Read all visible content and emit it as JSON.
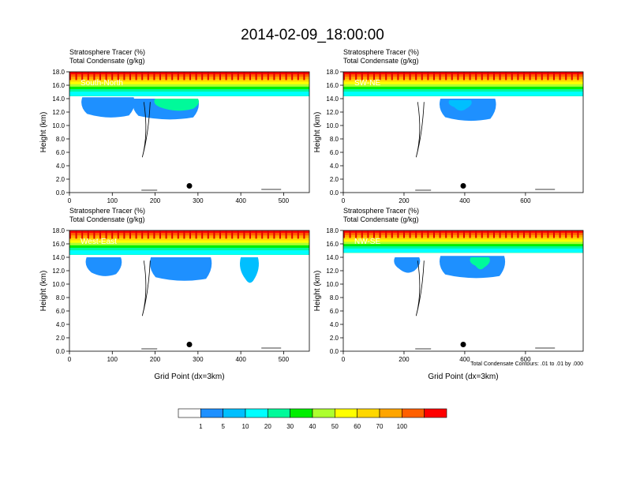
{
  "figure": {
    "title": "2014-02-09_18:00:00",
    "note": "Total Condensate Contours: .01 to .01 by .000"
  },
  "colorbar": {
    "levels": [
      "1",
      "5",
      "10",
      "20",
      "30",
      "40",
      "50",
      "60",
      "70",
      "100"
    ],
    "colors": [
      "#ffffff",
      "#1e90ff",
      "#00bfff",
      "#00ffff",
      "#00fa9a",
      "#00ee00",
      "#adff2f",
      "#ffff00",
      "#ffd700",
      "#ffa500",
      "#ff6000",
      "#ff0000"
    ]
  },
  "chart_data": [
    {
      "type": "heatmap",
      "panel_label": "South-North",
      "subtitle_1": "Stratosphere Tracer   (%)",
      "subtitle_2": "Total Condensate   (g/kg)",
      "xlabel": "",
      "ylabel": "Height (km)",
      "xlim": [
        0,
        560
      ],
      "ylim": [
        0,
        18
      ],
      "x_ticks": [
        "0",
        "100",
        "200",
        "300",
        "400",
        "500"
      ],
      "x_tick_values": [
        0,
        100,
        200,
        300,
        400,
        500
      ],
      "y_ticks": [
        "0.0",
        "2.0",
        "4.0",
        "6.0",
        "8.0",
        "10.0",
        "12.0",
        "14.0",
        "16.0",
        "18.0"
      ],
      "marker": {
        "x": 280,
        "y": 1.0
      },
      "tracer_base_km": 14.5,
      "blobs": [
        {
          "x0": 30,
          "x1": 150,
          "ytop": 14.2,
          "ybot": 11.5,
          "color": "#1e90ff"
        },
        {
          "x0": 150,
          "x1": 300,
          "ytop": 14.0,
          "ybot": 11.2,
          "color": "#1e90ff"
        },
        {
          "x0": 200,
          "x1": 300,
          "ytop": 14.0,
          "ybot": 12.5,
          "color": "#00fa9a"
        }
      ]
    },
    {
      "type": "heatmap",
      "panel_label": "SW-NE",
      "subtitle_1": "Stratosphere Tracer   (%)",
      "subtitle_2": "Total Condensate   (g/kg)",
      "xlabel": "",
      "ylabel": "Height (km)",
      "xlim": [
        0,
        790
      ],
      "ylim": [
        0,
        18
      ],
      "x_ticks": [
        "0",
        "200",
        "400",
        "600"
      ],
      "x_tick_values": [
        0,
        200,
        400,
        600
      ],
      "y_ticks": [
        "0.0",
        "2.0",
        "4.0",
        "6.0",
        "8.0",
        "10.0",
        "12.0",
        "14.0",
        "16.0",
        "18.0"
      ],
      "marker": {
        "x": 395,
        "y": 1.0
      },
      "tracer_base_km": 14.5,
      "blobs": [
        {
          "x0": 320,
          "x1": 500,
          "ytop": 14.0,
          "ybot": 11.0,
          "color": "#1e90ff"
        },
        {
          "x0": 350,
          "x1": 420,
          "ytop": 13.8,
          "ybot": 12.5,
          "color": "#00bfff"
        }
      ]
    },
    {
      "type": "heatmap",
      "panel_label": "West-East",
      "subtitle_1": "Stratosphere Tracer   (%)",
      "subtitle_2": "Total Condensate   (g/kg)",
      "xlabel": "Grid Point (dx=3km)",
      "ylabel": "Height (km)",
      "xlim": [
        0,
        560
      ],
      "ylim": [
        0,
        18
      ],
      "x_ticks": [
        "0",
        "100",
        "200",
        "300",
        "400",
        "500"
      ],
      "x_tick_values": [
        0,
        100,
        200,
        300,
        400,
        500
      ],
      "y_ticks": [
        "0.0",
        "2.0",
        "4.0",
        "6.0",
        "8.0",
        "10.0",
        "12.0",
        "14.0",
        "16.0",
        "18.0"
      ],
      "marker": {
        "x": 280,
        "y": 1.0
      },
      "tracer_base_km": 14.5,
      "blobs": [
        {
          "x0": 40,
          "x1": 120,
          "ytop": 14.0,
          "ybot": 11.5,
          "color": "#1e90ff"
        },
        {
          "x0": 190,
          "x1": 330,
          "ytop": 14.0,
          "ybot": 10.8,
          "color": "#1e90ff"
        },
        {
          "x0": 400,
          "x1": 440,
          "ytop": 14.0,
          "ybot": 10.5,
          "color": "#00bfff"
        }
      ]
    },
    {
      "type": "heatmap",
      "panel_label": "NW-SE",
      "subtitle_1": "Stratosphere Tracer   (%)",
      "subtitle_2": "Total Condensate   (g/kg)",
      "xlabel": "Grid Point (dx=3km)",
      "ylabel": "Height (km)",
      "xlim": [
        0,
        790
      ],
      "ylim": [
        0,
        18
      ],
      "x_ticks": [
        "0",
        "200",
        "400",
        "600"
      ],
      "x_tick_values": [
        0,
        200,
        400,
        600
      ],
      "y_ticks": [
        "0.0",
        "2.0",
        "4.0",
        "6.0",
        "8.0",
        "10.0",
        "12.0",
        "14.0",
        "16.0",
        "18.0"
      ],
      "marker": {
        "x": 395,
        "y": 1.0
      },
      "tracer_base_km": 14.8,
      "blobs": [
        {
          "x0": 170,
          "x1": 250,
          "ytop": 14.0,
          "ybot": 12.0,
          "color": "#1e90ff"
        },
        {
          "x0": 320,
          "x1": 530,
          "ytop": 14.2,
          "ybot": 11.2,
          "color": "#1e90ff"
        },
        {
          "x0": 420,
          "x1": 480,
          "ytop": 14.0,
          "ybot": 12.5,
          "color": "#00fa9a"
        }
      ]
    }
  ]
}
